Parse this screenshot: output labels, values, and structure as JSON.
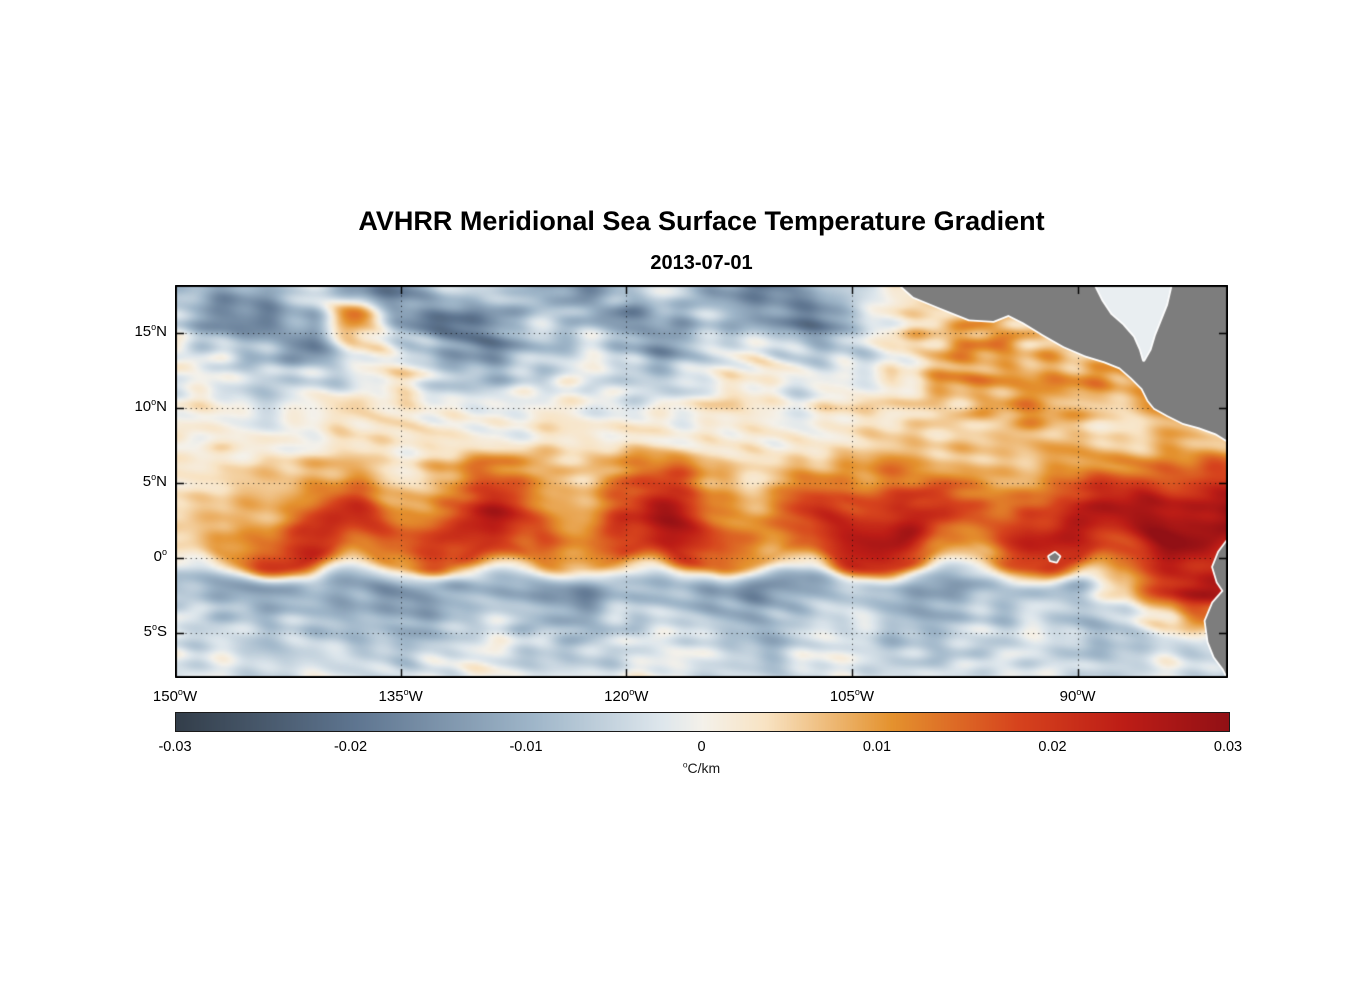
{
  "chart_data": {
    "type": "heatmap",
    "title": "AVHRR Meridional Sea Surface Temperature Gradient",
    "subtitle": "2013-07-01",
    "xlabel": "",
    "ylabel": "",
    "lon_range": [
      -150,
      -80
    ],
    "lat_range": [
      -8,
      18.2
    ],
    "grid_on": true,
    "x_ticks": [
      {
        "lon": -150,
        "label": "150°W"
      },
      {
        "lon": -135,
        "label": "135°W"
      },
      {
        "lon": -120,
        "label": "120°W"
      },
      {
        "lon": -105,
        "label": "105°W"
      },
      {
        "lon": -90,
        "label": "90°W"
      }
    ],
    "y_ticks": [
      {
        "lat": 15,
        "label": "15°N"
      },
      {
        "lat": 10,
        "label": "10°N"
      },
      {
        "lat": 5,
        "label": "5°N"
      },
      {
        "lat": 0,
        "label": "0°"
      },
      {
        "lat": -5,
        "label": "5°S"
      }
    ],
    "grid": {
      "comment": "meridional SST gradient, values in 0.001 degC/km, rows ordered north to south",
      "value_scale": 0.001,
      "lons": [
        -150,
        -147,
        -144,
        -141,
        -138,
        -135,
        -132,
        -129,
        -126,
        -123,
        -120,
        -117,
        -114,
        -111,
        -108,
        -105,
        -102,
        -99,
        -96,
        -93,
        -90,
        -87,
        -84,
        -81
      ],
      "lats": [
        18,
        16,
        14,
        12,
        10,
        8,
        6,
        4,
        2,
        0,
        -2,
        -4,
        -6,
        -8
      ],
      "values_milli": [
        [
          -5,
          -12,
          -8,
          -2,
          -15,
          -18,
          -6,
          -3,
          -10,
          -16,
          -8,
          -2,
          -12,
          -18,
          -10,
          -4,
          2,
          5,
          0,
          -6,
          -3,
          2,
          4,
          0
        ],
        [
          -8,
          -15,
          -20,
          -10,
          14,
          -12,
          -22,
          -15,
          -5,
          -8,
          -18,
          -12,
          -4,
          -15,
          -20,
          -8,
          0,
          4,
          8,
          3,
          -2,
          3,
          6,
          2
        ],
        [
          -3,
          -6,
          -12,
          -18,
          4,
          -2,
          -10,
          -18,
          -10,
          -3,
          -8,
          -14,
          -6,
          -2,
          -10,
          -6,
          2,
          6,
          10,
          6,
          2,
          6,
          10,
          5
        ],
        [
          0,
          -3,
          -8,
          -5,
          -2,
          2,
          -4,
          -8,
          -4,
          0,
          -3,
          -6,
          -2,
          2,
          -3,
          -2,
          4,
          8,
          12,
          8,
          14,
          10,
          6,
          8
        ],
        [
          2,
          0,
          -2,
          1,
          3,
          1,
          -2,
          0,
          2,
          1,
          -1,
          1,
          3,
          2,
          0,
          3,
          5,
          7,
          9,
          12,
          8,
          5,
          9,
          6
        ],
        [
          1,
          2,
          1,
          0,
          2,
          3,
          1,
          0,
          2,
          3,
          2,
          1,
          3,
          2,
          1,
          2,
          4,
          6,
          5,
          8,
          6,
          4,
          7,
          5
        ],
        [
          2,
          3,
          5,
          8,
          6,
          3,
          8,
          12,
          8,
          4,
          10,
          14,
          8,
          4,
          6,
          10,
          12,
          8,
          6,
          8,
          10,
          12,
          16,
          18
        ],
        [
          3,
          5,
          8,
          12,
          16,
          10,
          14,
          18,
          12,
          8,
          16,
          20,
          12,
          8,
          14,
          18,
          22,
          16,
          12,
          18,
          20,
          22,
          26,
          26
        ],
        [
          5,
          8,
          14,
          20,
          24,
          16,
          20,
          26,
          18,
          12,
          22,
          28,
          18,
          12,
          20,
          26,
          28,
          20,
          16,
          24,
          26,
          26,
          30,
          28
        ],
        [
          4,
          10,
          18,
          22,
          14,
          10,
          16,
          22,
          14,
          8,
          18,
          24,
          14,
          8,
          16,
          22,
          18,
          12,
          10,
          18,
          22,
          16,
          22,
          20
        ],
        [
          -8,
          -12,
          -15,
          -10,
          -14,
          -16,
          -12,
          -8,
          -14,
          -16,
          -10,
          -8,
          -14,
          -18,
          -12,
          -8,
          -12,
          -14,
          -10,
          -8,
          -10,
          8,
          22,
          26
        ],
        [
          -4,
          -8,
          -10,
          -6,
          -10,
          -12,
          -8,
          -5,
          -10,
          -12,
          -6,
          -4,
          -10,
          -12,
          -8,
          -4,
          -8,
          -10,
          -6,
          -4,
          -8,
          -4,
          6,
          14
        ],
        [
          -2,
          -4,
          -6,
          -3,
          -5,
          -8,
          -4,
          -2,
          -6,
          -8,
          -3,
          -2,
          -6,
          -8,
          -4,
          -2,
          -5,
          -6,
          -3,
          -2,
          -5,
          -8,
          -4,
          -5
        ],
        [
          -1,
          -2,
          -3,
          -1,
          -2,
          -4,
          -2,
          -1,
          -3,
          -4,
          -1,
          -1,
          -3,
          -4,
          -2,
          -1,
          -2,
          -3,
          -1,
          -1,
          -2,
          -4,
          -2,
          -3
        ]
      ]
    },
    "colorbar": {
      "min": -0.03,
      "max": 0.03,
      "ticks": [
        -0.03,
        -0.02,
        -0.01,
        0,
        0.01,
        0.02,
        0.03
      ],
      "tick_labels": [
        "-0.03",
        "-0.02",
        "-0.01",
        "0",
        "0.01",
        "0.02",
        "0.03"
      ],
      "units": "°C/km",
      "colormap": [
        [
          0.0,
          "#333e4a"
        ],
        [
          0.17,
          "#5e7590"
        ],
        [
          0.34,
          "#9fb6c9"
        ],
        [
          0.46,
          "#dde6ec"
        ],
        [
          0.5,
          "#f4f1ea"
        ],
        [
          0.56,
          "#f8e3c3"
        ],
        [
          0.68,
          "#e4922e"
        ],
        [
          0.8,
          "#d6431d"
        ],
        [
          0.9,
          "#bd1d16"
        ],
        [
          1.0,
          "#921015"
        ]
      ]
    },
    "land": {
      "fill": "#7d7d7d",
      "outline": "#ffffff",
      "polygons_lonlat": {
        "central_america": [
          [
            -101.8,
            18.2
          ],
          [
            -100.9,
            17.4
          ],
          [
            -99.2,
            16.7
          ],
          [
            -97.2,
            15.9
          ],
          [
            -95.6,
            15.8
          ],
          [
            -94.6,
            16.2
          ],
          [
            -93.6,
            15.7
          ],
          [
            -92.3,
            14.9
          ],
          [
            -90.9,
            14.1
          ],
          [
            -89.5,
            13.5
          ],
          [
            -88.2,
            13.1
          ],
          [
            -87.2,
            12.7
          ],
          [
            -86.4,
            12.0
          ],
          [
            -85.7,
            11.3
          ],
          [
            -85.3,
            10.5
          ],
          [
            -84.9,
            10.0
          ],
          [
            -84.0,
            9.5
          ],
          [
            -83.0,
            9.0
          ],
          [
            -81.9,
            8.7
          ],
          [
            -80.8,
            8.3
          ],
          [
            -80.0,
            7.8
          ],
          [
            -80.0,
            18.2
          ]
        ],
        "caribbean_inlet": [
          [
            -88.8,
            18.2
          ],
          [
            -88.3,
            17.2
          ],
          [
            -87.7,
            16.3
          ],
          [
            -86.9,
            15.6
          ],
          [
            -86.2,
            14.8
          ],
          [
            -85.8,
            13.9
          ],
          [
            -85.6,
            13.2
          ],
          [
            -85.2,
            13.9
          ],
          [
            -84.9,
            14.9
          ],
          [
            -84.5,
            15.9
          ],
          [
            -84.1,
            16.9
          ],
          [
            -83.8,
            18.2
          ]
        ],
        "south_america": [
          [
            -80.0,
            1.2
          ],
          [
            -80.6,
            0.4
          ],
          [
            -81.0,
            -0.6
          ],
          [
            -80.7,
            -1.6
          ],
          [
            -80.3,
            -2.2
          ],
          [
            -81.0,
            -3.0
          ],
          [
            -81.5,
            -4.2
          ],
          [
            -81.3,
            -5.6
          ],
          [
            -80.9,
            -6.6
          ],
          [
            -80.3,
            -7.4
          ],
          [
            -80.0,
            -8.0
          ]
        ],
        "galapagos": [
          [
            -91.9,
            0.1
          ],
          [
            -91.5,
            0.35
          ],
          [
            -91.2,
            0.1
          ],
          [
            -91.4,
            -0.25
          ],
          [
            -91.8,
            -0.15
          ]
        ]
      }
    }
  }
}
